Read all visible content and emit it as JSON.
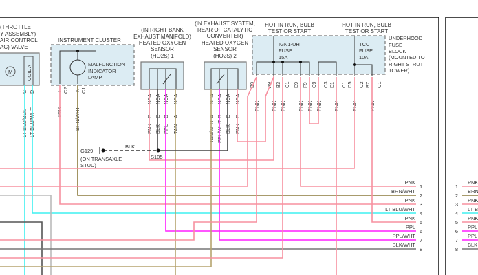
{
  "colors": {
    "pnk": "#f7909f",
    "brn_wht": "#8c7a3c",
    "tan": "#b5a46e",
    "lt_blu": "#3ef0f0",
    "ppl": "#ff1eff",
    "blk": "#444444",
    "box_fill": "#dcecf3"
  },
  "iac": {
    "lines": [
      "(THROTTLE",
      "Y ASSEMBLY)",
      "AIR CONTROL",
      "AC) VALVE"
    ],
    "coil": "COIL A",
    "motor": "M",
    "pins": [
      "C",
      "D"
    ],
    "wires": [
      "LT BLU/BLK",
      "LT BLU/WHT"
    ]
  },
  "cluster": {
    "title": "INSTRUMENT CLUSTER",
    "lamp": [
      "MALFUNCTION",
      "INDICATOR",
      "LAMP"
    ],
    "pins": [
      "I",
      "N"
    ],
    "connectors": [
      "C2",
      "C1"
    ],
    "wires": [
      "PNK",
      "BRN/WHT"
    ]
  },
  "ho2s1": {
    "lines": [
      "(IN RIGHT BANK",
      "EXHAUST MANIFOLD)",
      "HEATED OXYGEN",
      "SENSOR",
      "(HO2S) 1"
    ],
    "nca": "NCA",
    "pins": [
      "D",
      "C",
      "B",
      "A"
    ],
    "wires": [
      "PNK",
      "BLK",
      "PPL",
      "TAN"
    ]
  },
  "ho2s2": {
    "lines": [
      "(IN EXHAUST SYSTEM,",
      "REAR OF CATALYTIC",
      "CONVERTER)",
      "HEATED OXYGEN",
      "SENSOR",
      "(HO2S) 2"
    ],
    "nca": "NCA",
    "pins": [
      "A",
      "B",
      "C",
      "D"
    ],
    "wires": [
      "TAN/WHT",
      "PPL/WHT",
      "BLK",
      "PNK"
    ]
  },
  "ground": {
    "name": "G129",
    "location": [
      "(ON TRANSAXLE",
      "STUD)"
    ],
    "wire": "BLK",
    "splice": "S105"
  },
  "fuse_block": {
    "hot1": [
      "HOT IN RUN, BULB",
      "TEST OR START"
    ],
    "hot2": [
      "HOT IN RUN, BULB",
      "TEST OR START"
    ],
    "fuse1": [
      "IGN1-UH",
      "FUSE",
      "15A"
    ],
    "fuse2": [
      "TCC",
      "FUSE",
      "10A"
    ],
    "name": [
      "UNDERHOOD",
      "FUSE",
      "BLOCK",
      "(MOUNTED TO",
      "RIGHT STRUT",
      "TOWER)"
    ],
    "pins": [
      "B9",
      "A9",
      "B3",
      "E9",
      "F9",
      "C9",
      "E1",
      "D5",
      "B7"
    ],
    "connectors": [
      "C1",
      "C3",
      "C1",
      "C2",
      "C1"
    ],
    "wire": "PNK"
  },
  "connector_rows": [
    {
      "num": "1",
      "label": "PNK"
    },
    {
      "num": "2",
      "label": "BRN/WHT"
    },
    {
      "num": "3",
      "label": "PNK"
    },
    {
      "num": "4",
      "label": "LT BLU/WHT"
    },
    {
      "num": "5",
      "label": "PNK"
    },
    {
      "num": "6",
      "label": "PPL"
    },
    {
      "num": "7",
      "label": "PPL/WHT"
    },
    {
      "num": "8",
      "label": "BLK/WHT"
    }
  ],
  "right_panel_rows": [
    {
      "num": "1",
      "label": "PNK"
    },
    {
      "num": "2",
      "label": "BRN"
    },
    {
      "num": "3",
      "label": "PNK"
    },
    {
      "num": "4",
      "label": "LT BL"
    },
    {
      "num": "5",
      "label": "PNK"
    },
    {
      "num": "6",
      "label": "PPL"
    },
    {
      "num": "7",
      "label": "PPL"
    },
    {
      "num": "8",
      "label": "BLK"
    }
  ]
}
